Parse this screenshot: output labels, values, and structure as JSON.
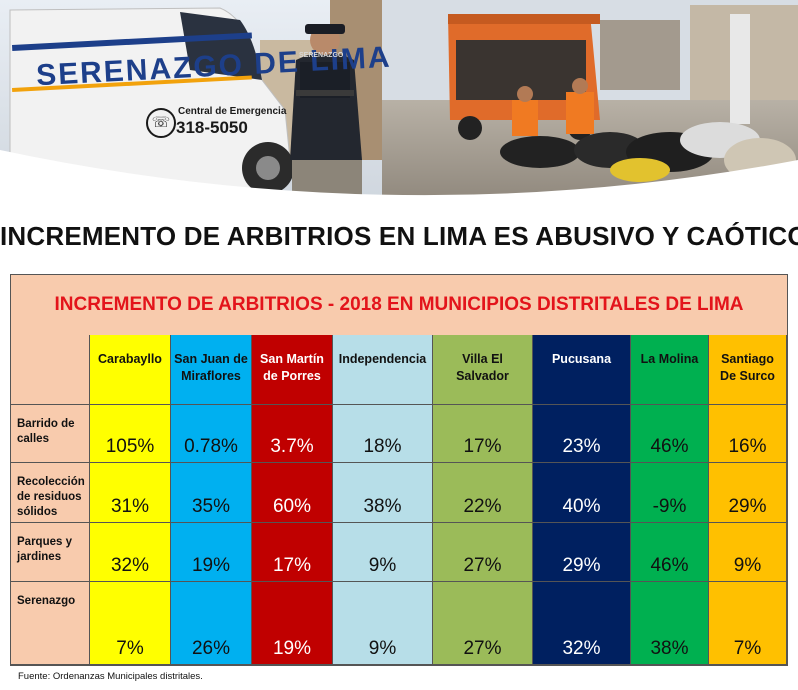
{
  "banner": {
    "van_label": "SERENAZGO DE LIMA",
    "van_sublabel": "Central de Emergencia",
    "van_phone": "318-5050",
    "guard_badge": "SERENAZGO"
  },
  "headline": "INCREMENTO DE ARBITRIOS EN LIMA ES ABUSIVO Y CAÓTICO",
  "table": {
    "title": "INCREMENTO DE ARBITRIOS - 2018  EN MUNICIPIOS DISTRITALES DE LIMA",
    "columns": [
      {
        "line1": "Carabayllo",
        "line2": "",
        "color": "#ffff00"
      },
      {
        "line1": "San Juan de",
        "line2": "Miraflores",
        "color": "#00b0f0"
      },
      {
        "line1": "San Martín",
        "line2": "de Porres",
        "color": "#c00000"
      },
      {
        "line1": "Independencia",
        "line2": "",
        "color": "#b7dee8"
      },
      {
        "line1": "Villa El",
        "line2": "Salvador",
        "color": "#9bbb59"
      },
      {
        "line1": "Pucusana",
        "line2": "",
        "color": "#002060"
      },
      {
        "line1": "La Molina",
        "line2": "",
        "color": "#00b050"
      },
      {
        "line1": "Santiago",
        "line2": "De Surco",
        "color": "#ffc000"
      }
    ],
    "rows": [
      {
        "label_lines": [
          "Barrido de",
          "calles"
        ],
        "values": [
          "105%",
          "0.78%",
          "3.7%",
          "18%",
          "17%",
          "23%",
          "46%",
          "16%"
        ]
      },
      {
        "label_lines": [
          "Recolección",
          "de residuos",
          "sólidos"
        ],
        "values": [
          "31%",
          "35%",
          "60%",
          "38%",
          "22%",
          "40%",
          "-9%",
          "29%"
        ]
      },
      {
        "label_lines": [
          "Parques y",
          "jardines"
        ],
        "values": [
          "32%",
          "19%",
          "17%",
          "9%",
          "27%",
          "29%",
          "46%",
          "9%"
        ]
      },
      {
        "label_lines": [
          "Serenazgo"
        ],
        "values": [
          "7%",
          "26%",
          "19%",
          "9%",
          "27%",
          "32%",
          "38%",
          "7%"
        ]
      }
    ]
  },
  "source": "Fuente: Ordenanzas Municipales distritales."
}
